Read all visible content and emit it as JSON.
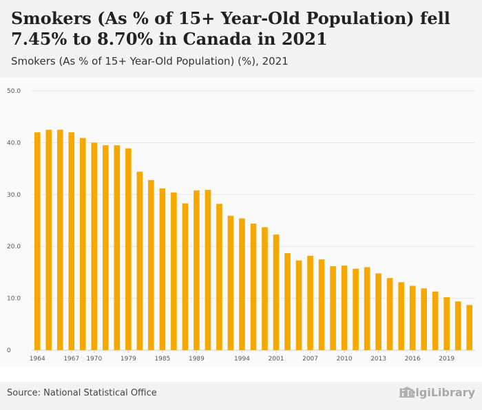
{
  "header": {
    "title": "Smokers (As % of 15+ Year-Old Population) fell 7.45% to 8.70% in Canada in 2021",
    "subtitle": "Smokers (As % of 15+ Year-Old Population) (%), 2021"
  },
  "footer": {
    "source": "Source: National Statistical Office",
    "logo_text": "HelgiLibrary"
  },
  "colors": {
    "bar": "#f5a800",
    "grid": "#e3e3e3",
    "header_bg": "#f3f3f3"
  },
  "chart_data": {
    "type": "bar",
    "title": "Smokers (As % of 15+ Year-Old Population) fell 7.45% to 8.70% in Canada in 2021",
    "subtitle": "Smokers (As % of 15+ Year-Old Population) (%), 2021",
    "xlabel": "",
    "ylabel": "",
    "ylim": [
      0,
      50
    ],
    "yticks": [
      0,
      10.0,
      20.0,
      30.0,
      40.0,
      50.0
    ],
    "ytick_labels": [
      "0",
      "10.0",
      "20.0",
      "30.0",
      "40.0",
      "50.0"
    ],
    "grid": true,
    "categories": [
      "1964",
      "1965",
      "1966",
      "1967",
      "1968",
      "1970",
      "1971",
      "1972",
      "1979",
      "1981",
      "1983",
      "1985",
      "1986",
      "1988",
      "1989",
      "1990",
      "1991",
      "1993",
      "1994",
      "1995",
      "1997",
      "2001",
      "2003",
      "2005",
      "2007",
      "2008",
      "2009",
      "2010",
      "2011",
      "2012",
      "2013",
      "2014",
      "2015",
      "2016",
      "2017",
      "2018",
      "2019",
      "2020",
      "2021"
    ],
    "x_tick_labels": [
      "1964",
      "1967",
      "1970",
      "1979",
      "1985",
      "1989",
      "1994",
      "2001",
      "2007",
      "2010",
      "2013",
      "2016",
      "2019"
    ],
    "values": [
      42.0,
      42.5,
      42.5,
      42.0,
      40.9,
      40.0,
      39.5,
      39.5,
      38.9,
      34.4,
      32.8,
      31.2,
      30.4,
      28.3,
      30.8,
      30.9,
      28.2,
      25.9,
      25.4,
      24.4,
      23.7,
      22.3,
      18.7,
      17.3,
      18.2,
      17.5,
      16.2,
      16.3,
      15.7,
      16.0,
      14.8,
      13.9,
      13.1,
      12.4,
      11.9,
      11.3,
      10.2,
      9.4,
      8.7
    ]
  }
}
